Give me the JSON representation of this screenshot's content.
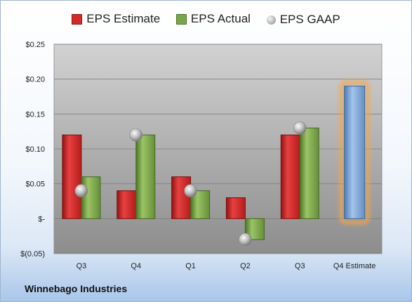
{
  "company": "Winnebago Industries",
  "legend": {
    "estimate": "EPS Estimate",
    "actual": "EPS Actual",
    "gaap": "EPS GAAP"
  },
  "colors": {
    "estimate": "#d42a2a",
    "actual": "#79a64a",
    "gaap": "#a8a8a8",
    "q4_estimate": "#7ea7d6",
    "highlight": "#f5a646"
  },
  "chart_data": {
    "type": "bar",
    "categories": [
      "Q3",
      "Q4",
      "Q1",
      "Q2",
      "Q3",
      "Q4 Estimate"
    ],
    "series": [
      {
        "name": "EPS Estimate",
        "values": [
          0.12,
          0.04,
          0.06,
          0.03,
          0.12,
          null
        ]
      },
      {
        "name": "EPS Actual",
        "values": [
          0.06,
          0.12,
          0.04,
          -0.03,
          0.13,
          null
        ]
      },
      {
        "name": "EPS GAAP",
        "values": [
          0.04,
          0.12,
          0.04,
          -0.03,
          0.13,
          null
        ]
      }
    ],
    "q4_estimate": 0.19,
    "y_ticks": [
      {
        "value": 0.25,
        "label": "$0.25"
      },
      {
        "value": 0.2,
        "label": "$0.20"
      },
      {
        "value": 0.15,
        "label": "$0.15"
      },
      {
        "value": 0.1,
        "label": "$0.10"
      },
      {
        "value": 0.05,
        "label": "$0.05"
      },
      {
        "value": 0.0,
        "label": "$-"
      },
      {
        "value": -0.05,
        "label": "$(0.05)"
      }
    ],
    "ylim": [
      -0.05,
      0.25
    ],
    "grid": true,
    "legend_position": "top"
  }
}
